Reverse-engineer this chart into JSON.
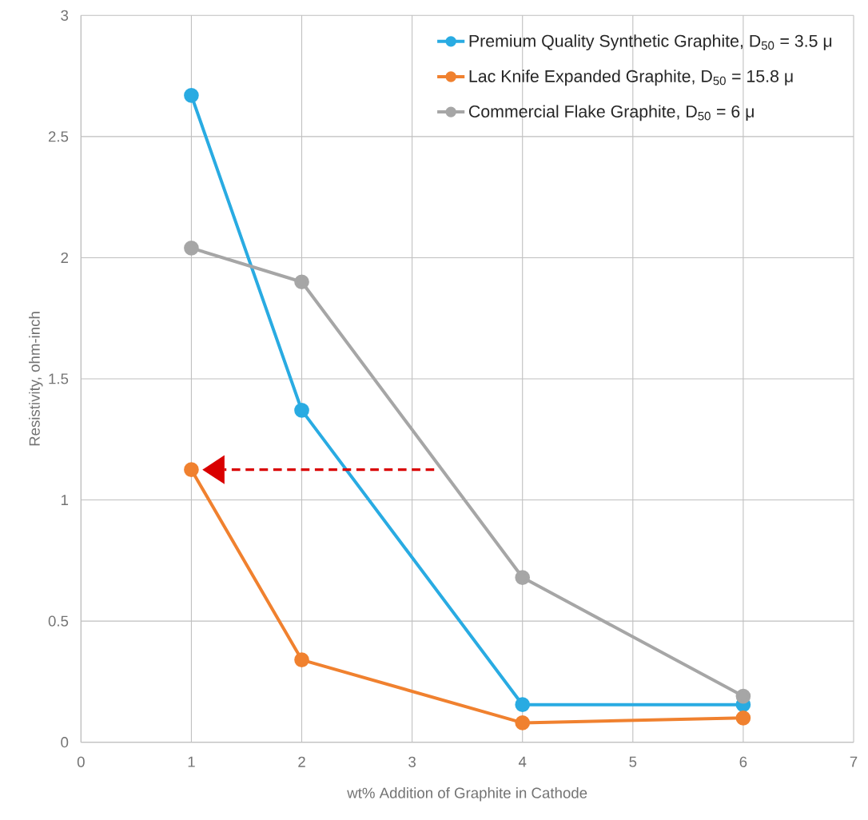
{
  "chart_data": {
    "type": "line",
    "xlabel": "wt% Addition of Graphite in Cathode",
    "ylabel": "Resistivity, ohm-inch",
    "x": [
      1,
      2,
      4,
      6
    ],
    "xlim": [
      0,
      7
    ],
    "xticks": [
      0,
      1,
      2,
      3,
      4,
      5,
      6,
      7
    ],
    "ylim": [
      0,
      3
    ],
    "yticks": [
      0,
      0.5,
      1,
      1.5,
      2,
      2.5,
      3
    ],
    "grid": true,
    "legend": "top right",
    "marker": "circle",
    "line_style": "solid",
    "series": [
      {
        "name": "Premium Quality Synthetic Graphite, D$_{50}$ = 3.5 μ",
        "color": "#29abe2",
        "values": [
          2.67,
          1.37,
          0.155,
          0.155
        ]
      },
      {
        "name": "Lac Knife Expanded Graphite, D$_{50}$ = 15.8 μ",
        "color": "#f0812f",
        "values": [
          1.125,
          0.34,
          0.08,
          0.1
        ]
      },
      {
        "name": "Commercial Flake Graphite, D$_{50}$ = 6 μ",
        "color": "#a6a6a6",
        "values": [
          2.04,
          1.9,
          0.68,
          0.19
        ]
      }
    ]
  }
}
